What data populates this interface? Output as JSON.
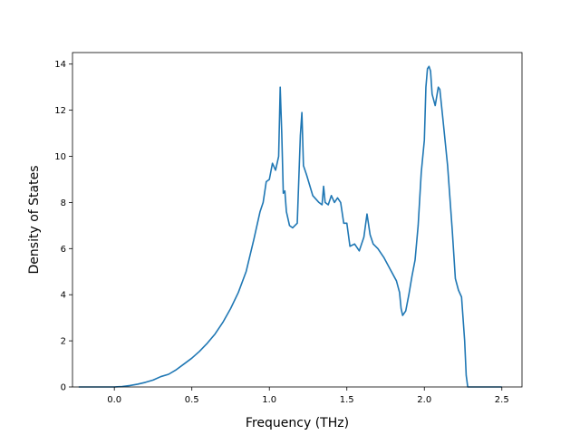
{
  "chart_data": {
    "type": "line",
    "title": "",
    "xlabel": "Frequency (THz)",
    "ylabel": "Density of States",
    "xlim": [
      -0.27,
      2.63
    ],
    "ylim": [
      0,
      14.5
    ],
    "xticks": [
      0.0,
      0.5,
      1.0,
      1.5,
      2.0,
      2.5
    ],
    "xtick_labels": [
      "0.0",
      "0.5",
      "1.0",
      "1.5",
      "2.0",
      "2.5"
    ],
    "yticks": [
      0,
      2,
      4,
      6,
      8,
      10,
      12,
      14
    ],
    "ytick_labels": [
      "0",
      "2",
      "4",
      "6",
      "8",
      "10",
      "12",
      "14"
    ],
    "grid": false,
    "legend": false,
    "series": [
      {
        "color": "#1f77b4",
        "x": [
          -0.23,
          -0.1,
          0.0,
          0.05,
          0.1,
          0.15,
          0.2,
          0.25,
          0.3,
          0.35,
          0.4,
          0.45,
          0.5,
          0.55,
          0.6,
          0.65,
          0.7,
          0.75,
          0.8,
          0.85,
          0.9,
          0.94,
          0.96,
          0.98,
          1.0,
          1.02,
          1.04,
          1.06,
          1.07,
          1.08,
          1.09,
          1.1,
          1.11,
          1.13,
          1.15,
          1.18,
          1.2,
          1.21,
          1.22,
          1.24,
          1.28,
          1.32,
          1.34,
          1.35,
          1.36,
          1.38,
          1.4,
          1.42,
          1.44,
          1.46,
          1.48,
          1.5,
          1.52,
          1.55,
          1.58,
          1.61,
          1.63,
          1.65,
          1.67,
          1.7,
          1.74,
          1.78,
          1.82,
          1.84,
          1.85,
          1.86,
          1.88,
          1.9,
          1.92,
          1.94,
          1.96,
          1.98,
          2.0,
          2.01,
          2.02,
          2.03,
          2.04,
          2.05,
          2.07,
          2.09,
          2.1,
          2.12,
          2.15,
          2.18,
          2.2,
          2.22,
          2.24,
          2.26,
          2.27,
          2.28,
          2.35,
          2.5
        ],
        "y": [
          0,
          0,
          0,
          0.02,
          0.06,
          0.12,
          0.2,
          0.3,
          0.45,
          0.55,
          0.75,
          1.0,
          1.25,
          1.55,
          1.9,
          2.3,
          2.8,
          3.4,
          4.1,
          5.0,
          6.4,
          7.6,
          8.0,
          8.9,
          9.0,
          9.7,
          9.4,
          10.0,
          13.0,
          11.0,
          8.4,
          8.5,
          7.6,
          7.0,
          6.9,
          7.1,
          10.9,
          11.9,
          9.6,
          9.2,
          8.3,
          8.0,
          7.9,
          8.7,
          8.0,
          7.9,
          8.3,
          8.0,
          8.2,
          8.0,
          7.1,
          7.1,
          6.1,
          6.2,
          5.9,
          6.5,
          7.5,
          6.6,
          6.2,
          6.0,
          5.6,
          5.1,
          4.6,
          4.1,
          3.4,
          3.1,
          3.3,
          4.0,
          4.8,
          5.5,
          7.0,
          9.3,
          10.7,
          13.0,
          13.8,
          13.9,
          13.7,
          12.7,
          12.2,
          13.0,
          12.9,
          11.6,
          9.6,
          6.8,
          4.7,
          4.2,
          3.9,
          2.0,
          0.5,
          0,
          0,
          0
        ]
      }
    ]
  }
}
